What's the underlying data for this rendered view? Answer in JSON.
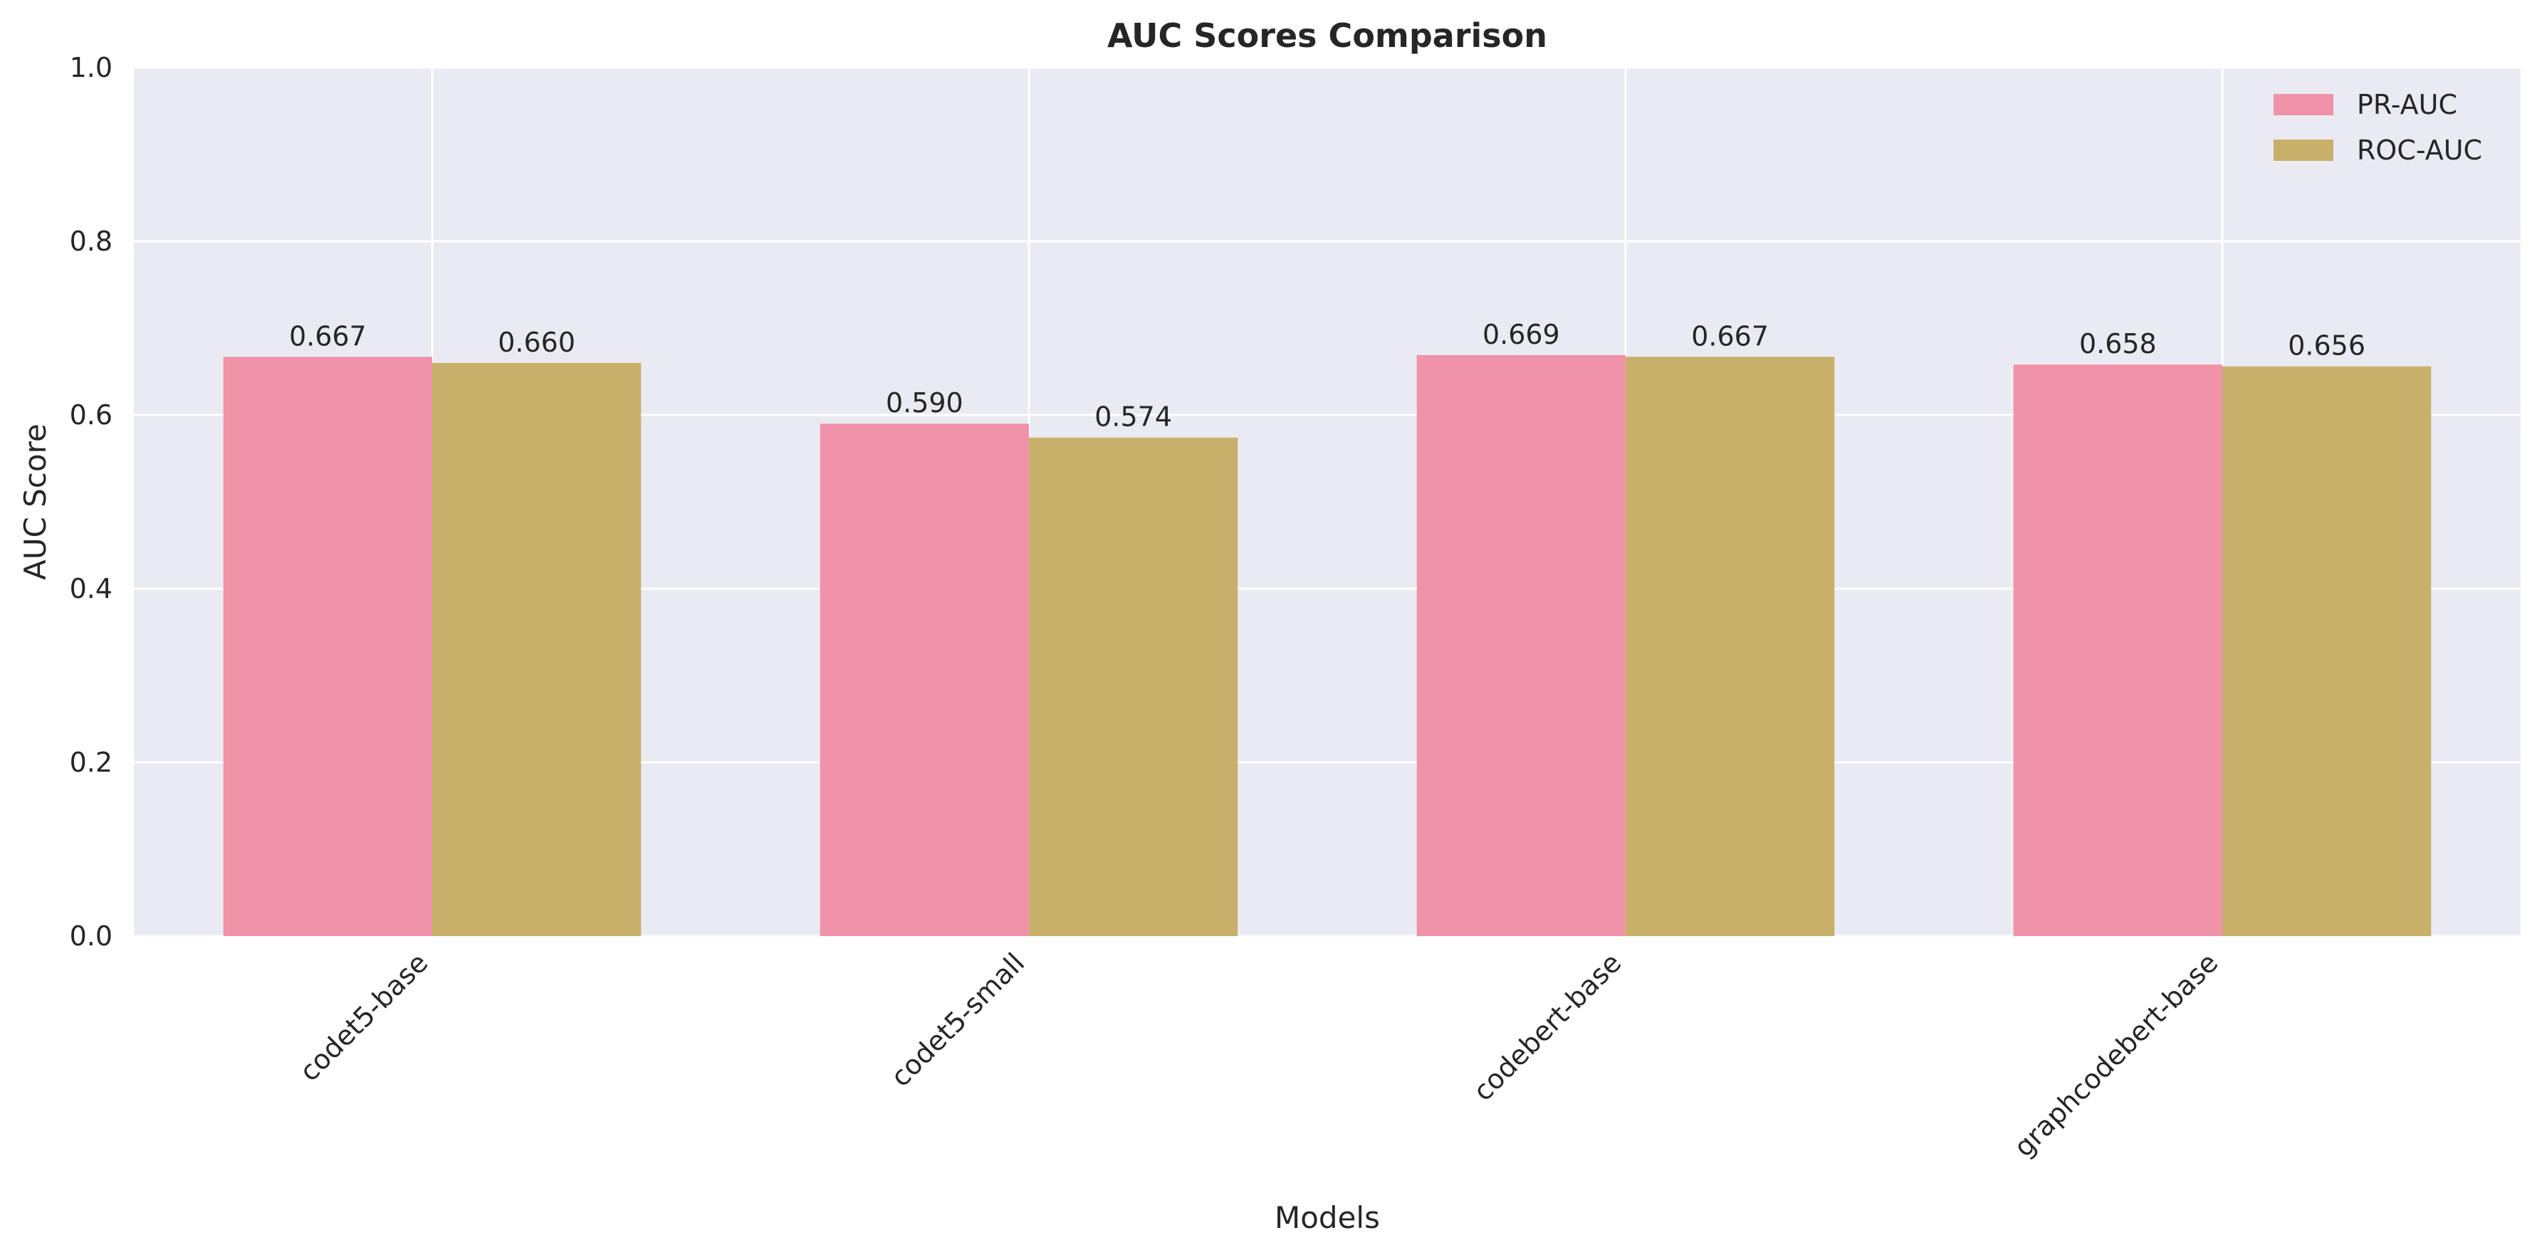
{
  "chart_data": {
    "type": "bar",
    "title": "AUC Scores Comparison",
    "xlabel": "Models",
    "ylabel": "AUC Score",
    "ylim": [
      0,
      1.0
    ],
    "yticks": [
      "0.0",
      "0.2",
      "0.4",
      "0.6",
      "0.8",
      "1.0"
    ],
    "categories": [
      "codet5-base",
      "codet5-small",
      "codebert-base",
      "graphcodebert-base"
    ],
    "series": [
      {
        "name": "PR-AUC",
        "values": [
          0.667,
          0.59,
          0.669,
          0.658
        ],
        "labels": [
          "0.667",
          "0.590",
          "0.669",
          "0.658"
        ],
        "color": "#f093a8"
      },
      {
        "name": "ROC-AUC",
        "values": [
          0.66,
          0.574,
          0.667,
          0.656
        ],
        "labels": [
          "0.660",
          "0.574",
          "0.667",
          "0.656"
        ],
        "color": "#c8b06a"
      }
    ],
    "grid": true,
    "legend_position": "top-right",
    "plot_background": "#eaeaf2",
    "grid_color": "#ffffff"
  }
}
